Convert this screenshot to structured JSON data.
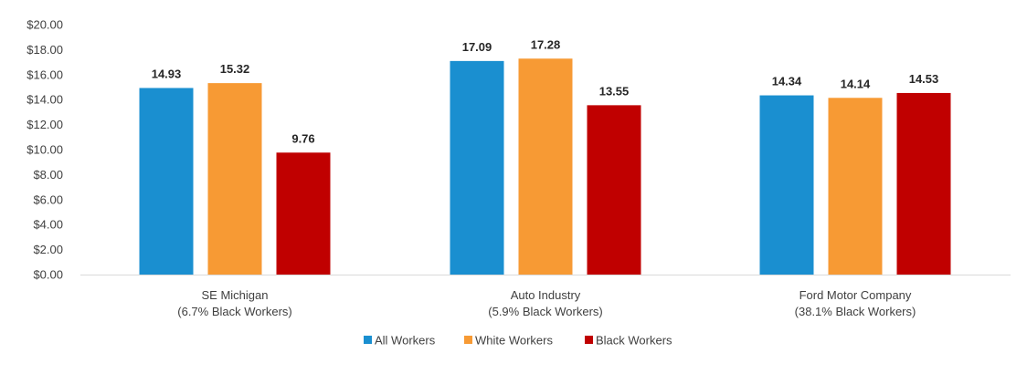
{
  "chart_data": {
    "type": "bar",
    "categories": [
      [
        "SE Michigan",
        "(6.7% Black Workers)"
      ],
      [
        "Auto Industry",
        "(5.9% Black Workers)"
      ],
      [
        "Ford Motor Company",
        "(38.1% Black Workers)"
      ]
    ],
    "series": [
      {
        "name": "All Workers",
        "color": "#1a8fd0",
        "values": [
          14.93,
          17.09,
          14.34
        ],
        "labels": [
          "14.93",
          "17.09",
          "14.34"
        ]
      },
      {
        "name": "White Workers",
        "color": "#f79a34",
        "values": [
          15.32,
          17.28,
          14.14
        ],
        "labels": [
          "15.32",
          "17.28",
          "14.14"
        ]
      },
      {
        "name": "Black Workers",
        "color": "#c00000",
        "values": [
          9.76,
          13.55,
          14.53
        ],
        "labels": [
          "9.76",
          "13.55",
          "14.53"
        ]
      }
    ],
    "ylim": [
      0,
      20
    ],
    "yticks": [
      "$0.00",
      "$2.00",
      "$4.00",
      "$6.00",
      "$8.00",
      "$10.00",
      "$12.00",
      "$14.00",
      "$16.00",
      "$18.00",
      "$20.00"
    ],
    "grid": false,
    "legend_position": "bottom"
  }
}
